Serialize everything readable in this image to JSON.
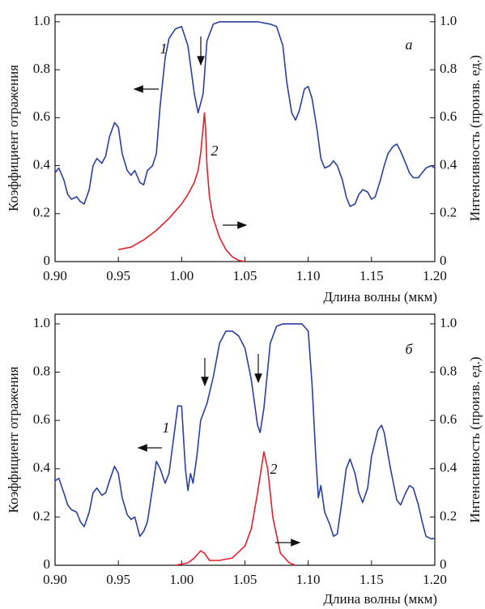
{
  "chart_data": [
    {
      "type": "line",
      "xlabel": "Длина волны (мкм)",
      "ylabel": "Коэффициент отражения",
      "y2label": "Интенсивность (произв. ед.)",
      "annotations": [
        "а",
        "1",
        "2"
      ],
      "xlim": [
        0.9,
        1.2
      ],
      "xticks": [
        {
          "value": 0.9,
          "label": "0.90"
        },
        {
          "value": 0.95,
          "label": "0.95"
        },
        {
          "value": 1.0,
          "label": "1.00"
        },
        {
          "value": 1.05,
          "label": "1.05"
        },
        {
          "value": 1.1,
          "label": "1.10"
        },
        {
          "value": 1.15,
          "label": "1.15"
        },
        {
          "value": 1.2,
          "label": "1.20"
        }
      ],
      "ylim": [
        0,
        1.03
      ],
      "yticks": [
        0,
        0.2,
        0.4,
        0.6,
        0.8,
        {
          "value": 1,
          "label": "1.0"
        }
      ],
      "y2lim": [
        0,
        1.03
      ],
      "y2ticks": [
        0,
        0.2,
        0.4,
        0.6,
        0.8,
        {
          "value": 1,
          "label": "1.0"
        }
      ],
      "series": [
        {
          "color": "#2b3f9e",
          "x": [
            0.9,
            0.903,
            0.907,
            0.91,
            0.913,
            0.917,
            0.92,
            0.923,
            0.927,
            0.93,
            0.933,
            0.937,
            0.94,
            0.943,
            0.947,
            0.95,
            0.953,
            0.957,
            0.96,
            0.963,
            0.967,
            0.97,
            0.973,
            0.977,
            0.98,
            0.983,
            0.987,
            0.99,
            0.995,
            1.0,
            1.005,
            1.01,
            1.013,
            1.017,
            1.02,
            1.025,
            1.03,
            1.06,
            1.07,
            1.075,
            1.08,
            1.083,
            1.087,
            1.09,
            1.093,
            1.097,
            1.1,
            1.103,
            1.107,
            1.11,
            1.113,
            1.117,
            1.12,
            1.123,
            1.127,
            1.13,
            1.133,
            1.137,
            1.14,
            1.143,
            1.147,
            1.15,
            1.153,
            1.157,
            1.16,
            1.163,
            1.167,
            1.17,
            1.173,
            1.177,
            1.18,
            1.183,
            1.187,
            1.19,
            1.193,
            1.197,
            1.2
          ],
          "values": [
            0.37,
            0.39,
            0.34,
            0.28,
            0.26,
            0.27,
            0.25,
            0.24,
            0.3,
            0.4,
            0.43,
            0.41,
            0.44,
            0.52,
            0.58,
            0.56,
            0.45,
            0.38,
            0.36,
            0.38,
            0.33,
            0.32,
            0.38,
            0.4,
            0.45,
            0.65,
            0.85,
            0.93,
            0.97,
            0.98,
            0.9,
            0.7,
            0.62,
            0.7,
            0.92,
            0.99,
            1.0,
            1.0,
            0.99,
            0.98,
            0.9,
            0.75,
            0.62,
            0.59,
            0.63,
            0.72,
            0.73,
            0.68,
            0.55,
            0.43,
            0.39,
            0.4,
            0.42,
            0.4,
            0.34,
            0.27,
            0.23,
            0.24,
            0.28,
            0.3,
            0.29,
            0.26,
            0.27,
            0.34,
            0.4,
            0.45,
            0.48,
            0.49,
            0.46,
            0.41,
            0.37,
            0.35,
            0.35,
            0.37,
            0.39,
            0.4,
            0.39
          ]
        },
        {
          "color": "#e0202a",
          "axis": "y2",
          "x": [
            0.95,
            0.96,
            0.97,
            0.98,
            0.99,
            1.0,
            1.005,
            1.01,
            1.013,
            1.015,
            1.017,
            1.018,
            1.019,
            1.02,
            1.022,
            1.025,
            1.03,
            1.035,
            1.04,
            1.045,
            1.05
          ],
          "values": [
            0.05,
            0.06,
            0.09,
            0.13,
            0.18,
            0.24,
            0.28,
            0.33,
            0.38,
            0.45,
            0.56,
            0.62,
            0.55,
            0.4,
            0.27,
            0.18,
            0.1,
            0.05,
            0.02,
            0.005,
            0
          ]
        }
      ]
    },
    {
      "type": "line",
      "xlabel": "Длина волны (мкм)",
      "ylabel": "Коэффициент отражения",
      "y2label": "Интенсивность (произв. ед.)",
      "annotations": [
        "б",
        "1",
        "2"
      ],
      "xlim": [
        0.9,
        1.2
      ],
      "xticks": [
        {
          "value": 0.9,
          "label": "0.90"
        },
        {
          "value": 0.95,
          "label": "0.95"
        },
        {
          "value": 1.0,
          "label": "1.00"
        },
        {
          "value": 1.05,
          "label": "1.05"
        },
        {
          "value": 1.1,
          "label": "1.10"
        },
        {
          "value": 1.15,
          "label": "1.15"
        },
        {
          "value": 1.2,
          "label": "1.20"
        }
      ],
      "ylim": [
        0,
        1.04
      ],
      "yticks": [
        0,
        0.2,
        0.4,
        0.6,
        0.8,
        {
          "value": 1,
          "label": "1.0"
        }
      ],
      "y2lim": [
        0,
        1.04
      ],
      "y2ticks": [
        0,
        0.2,
        0.4,
        0.6,
        0.8,
        {
          "value": 1,
          "label": "1.0"
        }
      ],
      "series": [
        {
          "color": "#2b3f9e",
          "x": [
            0.9,
            0.903,
            0.907,
            0.91,
            0.913,
            0.917,
            0.92,
            0.923,
            0.927,
            0.93,
            0.933,
            0.937,
            0.94,
            0.943,
            0.947,
            0.95,
            0.953,
            0.957,
            0.96,
            0.963,
            0.967,
            0.97,
            0.973,
            0.977,
            0.98,
            0.983,
            0.987,
            0.99,
            0.993,
            0.997,
            1.0,
            1.003,
            1.005,
            1.007,
            1.009,
            1.012,
            1.015,
            1.02,
            1.025,
            1.03,
            1.035,
            1.04,
            1.045,
            1.05,
            1.055,
            1.06,
            1.062,
            1.065,
            1.07,
            1.075,
            1.08,
            1.095,
            1.1,
            1.103,
            1.106,
            1.108,
            1.11,
            1.113,
            1.117,
            1.12,
            1.123,
            1.127,
            1.13,
            1.133,
            1.137,
            1.14,
            1.143,
            1.147,
            1.15,
            1.155,
            1.158,
            1.16,
            1.165,
            1.17,
            1.173,
            1.177,
            1.18,
            1.183,
            1.187,
            1.19,
            1.193,
            1.197,
            1.2
          ],
          "values": [
            0.35,
            0.36,
            0.3,
            0.25,
            0.23,
            0.22,
            0.18,
            0.16,
            0.22,
            0.3,
            0.32,
            0.29,
            0.3,
            0.35,
            0.41,
            0.38,
            0.28,
            0.21,
            0.19,
            0.2,
            0.12,
            0.14,
            0.18,
            0.32,
            0.43,
            0.4,
            0.34,
            0.38,
            0.5,
            0.66,
            0.66,
            0.4,
            0.31,
            0.38,
            0.34,
            0.45,
            0.6,
            0.67,
            0.78,
            0.92,
            0.97,
            0.97,
            0.95,
            0.9,
            0.77,
            0.58,
            0.55,
            0.65,
            0.92,
            0.99,
            1.0,
            1.0,
            0.97,
            0.75,
            0.45,
            0.28,
            0.33,
            0.22,
            0.17,
            0.12,
            0.13,
            0.28,
            0.4,
            0.44,
            0.38,
            0.3,
            0.26,
            0.32,
            0.45,
            0.56,
            0.58,
            0.55,
            0.4,
            0.27,
            0.25,
            0.3,
            0.33,
            0.32,
            0.25,
            0.18,
            0.12,
            0.11,
            0.11
          ]
        },
        {
          "color": "#e0202a",
          "axis": "y2",
          "x": [
            0.995,
            1.005,
            1.01,
            1.015,
            1.018,
            1.022,
            1.03,
            1.04,
            1.05,
            1.055,
            1.06,
            1.065,
            1.068,
            1.072,
            1.078,
            1.085,
            1.09
          ],
          "values": [
            0,
            0.01,
            0.03,
            0.06,
            0.05,
            0.02,
            0.02,
            0.03,
            0.08,
            0.15,
            0.3,
            0.47,
            0.4,
            0.2,
            0.05,
            0.01,
            0
          ]
        }
      ]
    }
  ]
}
